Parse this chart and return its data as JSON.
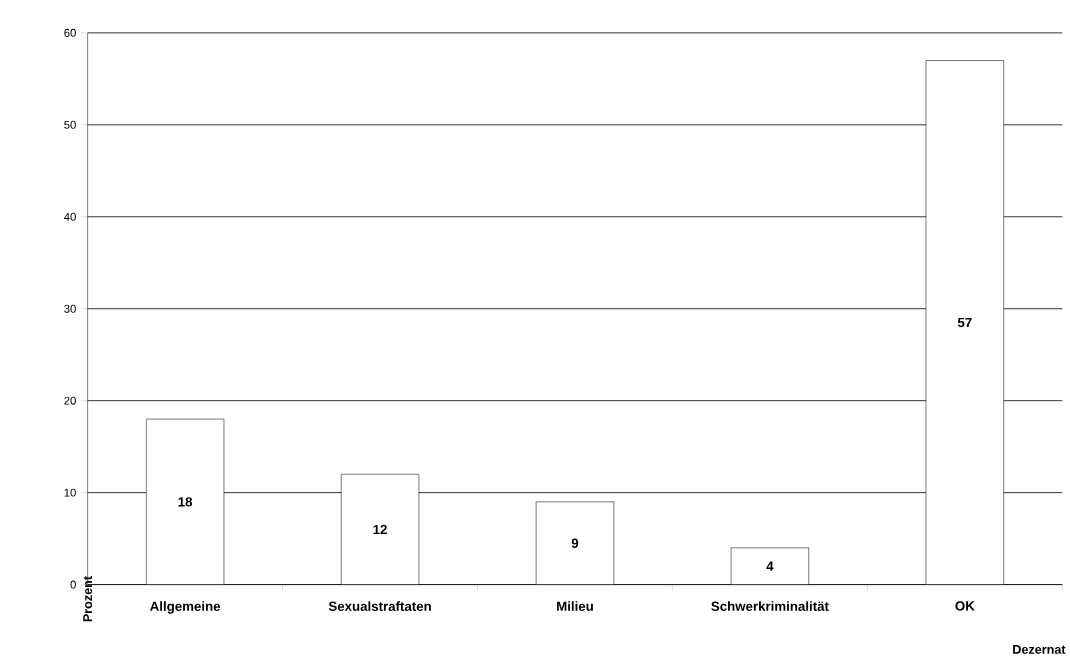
{
  "chart_data": {
    "type": "bar",
    "xlabel": "Dezernat",
    "ylabel": "Prozent",
    "categories": [
      "Allgemeine",
      "Sexualstraftaten",
      "Milieu",
      "Schwerkriminalität",
      "OK"
    ],
    "values": [
      18,
      12,
      9,
      4,
      57
    ],
    "color": "#ffffff",
    "ylim": [
      0,
      60
    ],
    "yticks": [
      0,
      10,
      20,
      30,
      40,
      50,
      60
    ],
    "grid": "y",
    "data_labels": true
  }
}
